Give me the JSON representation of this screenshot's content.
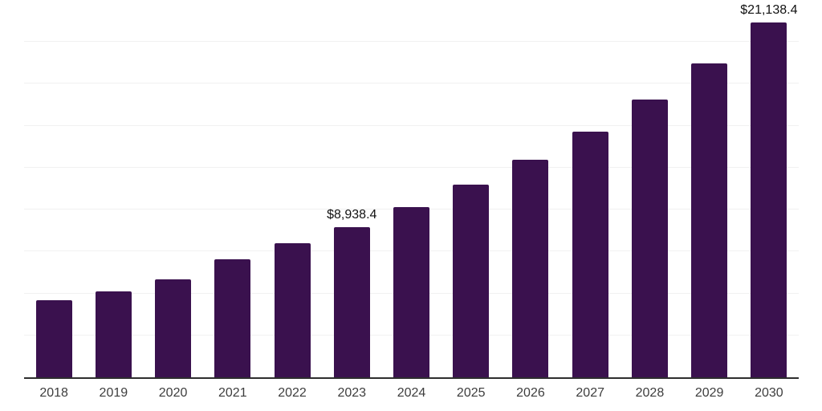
{
  "chart_data": {
    "type": "bar",
    "title": "",
    "xlabel": "",
    "ylabel": "",
    "categories": [
      "2018",
      "2019",
      "2020",
      "2021",
      "2022",
      "2023",
      "2024",
      "2025",
      "2026",
      "2027",
      "2028",
      "2029",
      "2030"
    ],
    "values": [
      4590,
      5120,
      5820,
      7020,
      7980,
      8938.4,
      10140,
      11500,
      12990,
      14630,
      16550,
      18710,
      21138.4
    ],
    "value_labels": [
      "",
      "",
      "",
      "",
      "",
      "$8,938.4",
      "",
      "",
      "",
      "",
      "",
      "",
      "$21,138.4"
    ],
    "ylim": [
      0,
      22500
    ],
    "gridline_step": 2500,
    "grid": "horizontal-only",
    "legend": "none",
    "y_axis_tick_labels": "none",
    "colors": {
      "bar": "#3a114e",
      "axis_line": "#2e2e2e",
      "gridline": "#f1f1f1",
      "tick_label": "#3d3d3d",
      "value_label": "#111111",
      "background": "#ffffff"
    }
  }
}
